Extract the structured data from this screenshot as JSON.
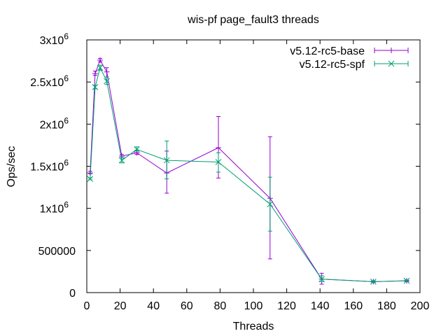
{
  "chart_data": {
    "type": "line",
    "title": "wis-pf page_fault3 threads",
    "xlabel": "Threads",
    "ylabel": "Ops/sec",
    "xlim": [
      0,
      200
    ],
    "ylim": [
      0,
      3000000
    ],
    "x_ticks": [
      0,
      20,
      40,
      60,
      80,
      100,
      120,
      140,
      160,
      180,
      200
    ],
    "y_ticks": [
      {
        "value": 0,
        "mantissa": "0",
        "exp": ""
      },
      {
        "value": 500000,
        "mantissa": "500000",
        "exp": ""
      },
      {
        "value": 1000000,
        "mantissa": "1x10",
        "exp": "6"
      },
      {
        "value": 1500000,
        "mantissa": "1.5x10",
        "exp": "6"
      },
      {
        "value": 2000000,
        "mantissa": "2x10",
        "exp": "6"
      },
      {
        "value": 2500000,
        "mantissa": "2.5x10",
        "exp": "6"
      },
      {
        "value": 3000000,
        "mantissa": "3x10",
        "exp": "6"
      }
    ],
    "grid": false,
    "legend_position": "top-right",
    "series": [
      {
        "name": "v5.12-rc5-base",
        "color": "#9400d3",
        "marker": "plus",
        "points": [
          {
            "x": 2,
            "y": 1420000,
            "low": 1410000,
            "high": 1440000
          },
          {
            "x": 5,
            "y": 2600000,
            "low": 2580000,
            "high": 2630000
          },
          {
            "x": 8,
            "y": 2760000,
            "low": 2740000,
            "high": 2780000
          },
          {
            "x": 12,
            "y": 2620000,
            "low": 2560000,
            "high": 2670000
          },
          {
            "x": 21,
            "y": 1620000,
            "low": 1600000,
            "high": 1640000
          },
          {
            "x": 30,
            "y": 1660000,
            "low": 1640000,
            "high": 1690000
          },
          {
            "x": 48,
            "y": 1420000,
            "low": 1180000,
            "high": 1680000
          },
          {
            "x": 79,
            "y": 1720000,
            "low": 1360000,
            "high": 2090000
          },
          {
            "x": 110,
            "y": 1120000,
            "low": 400000,
            "high": 1850000
          },
          {
            "x": 141,
            "y": 160000,
            "low": 100000,
            "high": 230000
          },
          {
            "x": 172,
            "y": 130000,
            "low": 120000,
            "high": 140000
          },
          {
            "x": 192,
            "y": 140000,
            "low": 130000,
            "high": 150000
          }
        ]
      },
      {
        "name": "v5.12-rc5-spf",
        "color": "#009e73",
        "marker": "cross",
        "points": [
          {
            "x": 2,
            "y": 1350000,
            "low": 1340000,
            "high": 1360000
          },
          {
            "x": 5,
            "y": 2440000,
            "low": 2420000,
            "high": 2460000
          },
          {
            "x": 8,
            "y": 2670000,
            "low": 2640000,
            "high": 2700000
          },
          {
            "x": 12,
            "y": 2510000,
            "low": 2470000,
            "high": 2560000
          },
          {
            "x": 21,
            "y": 1570000,
            "low": 1540000,
            "high": 1600000
          },
          {
            "x": 30,
            "y": 1700000,
            "low": 1680000,
            "high": 1730000
          },
          {
            "x": 48,
            "y": 1570000,
            "low": 1350000,
            "high": 1800000
          },
          {
            "x": 79,
            "y": 1550000,
            "low": 1430000,
            "high": 1660000
          },
          {
            "x": 110,
            "y": 1050000,
            "low": 730000,
            "high": 1370000
          },
          {
            "x": 141,
            "y": 160000,
            "low": 130000,
            "high": 200000
          },
          {
            "x": 172,
            "y": 130000,
            "low": 120000,
            "high": 140000
          },
          {
            "x": 192,
            "y": 140000,
            "low": 130000,
            "high": 150000
          }
        ]
      }
    ]
  }
}
